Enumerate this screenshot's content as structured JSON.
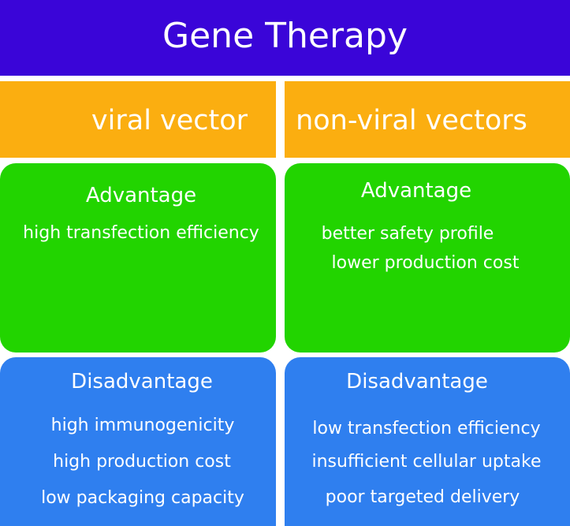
{
  "title": "Gene Therapy",
  "columns": [
    {
      "header": "viral vector",
      "advantage": {
        "heading": "Advantage",
        "items": [
          "high transfection efficiency"
        ]
      },
      "disadvantage": {
        "heading": "Disadvantage",
        "items": [
          "high immunogenicity",
          "high production cost",
          "low packaging capacity"
        ]
      }
    },
    {
      "header": "non-viral vectors",
      "advantage": {
        "heading": "Advantage",
        "items": [
          "better safety profile",
          "lower production cost"
        ]
      },
      "disadvantage": {
        "heading": "Disadvantage",
        "items": [
          "low transfection efficiency",
          "insufficient cellular uptake",
          "poor targeted delivery"
        ]
      }
    }
  ],
  "colors": {
    "title": "#3a05d8",
    "header": "#fbae10",
    "advantage": "#22d400",
    "disadvantage": "#2f7fef"
  }
}
